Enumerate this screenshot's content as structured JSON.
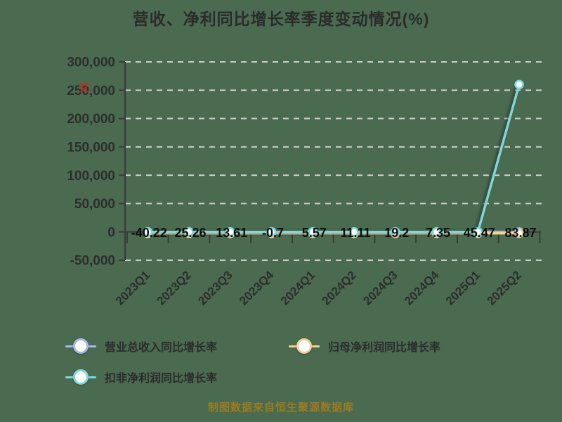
{
  "title": "营收、净利同比增长率季度变动情况(%)",
  "watermark_glyph": "爻",
  "footer": "制图数据来自恒生聚源数据库",
  "legend": [
    {
      "label": "营业总收入同比增长率",
      "color": "#a4bae7"
    },
    {
      "label": "归母净利润同比增长率",
      "color": "#f6cf94"
    },
    {
      "label": "扣非净利润同比增长率",
      "color": "#7ed7dc"
    }
  ],
  "colors": {
    "background": "#4b6b51",
    "gridline": "#cccccc",
    "axis": "#3a3a3a",
    "axis_text": "#2d2d2d",
    "point_label_text": "#0f0f0f",
    "footer_text": "#9c7c1d",
    "watermark_red": "#c42a1f"
  },
  "chart_data": {
    "type": "line",
    "title": "营收、净利同比增长率季度变动情况(%)",
    "xlabel": "",
    "ylabel": "",
    "categories": [
      "2023Q1",
      "2023Q2",
      "2023Q3",
      "2023Q4",
      "2024Q1",
      "2024Q2",
      "2024Q3",
      "2024Q4",
      "2025Q1",
      "2025Q2"
    ],
    "series": [
      {
        "name": "营业总收入同比增长率",
        "color": "#a4bae7",
        "labeled": false,
        "values_estimated_from_pixels": true,
        "values": [
          0,
          0,
          0,
          0,
          0,
          0,
          0,
          0,
          0,
          0
        ]
      },
      {
        "name": "归母净利润同比增长率",
        "color": "#f6cf94",
        "labeled": true,
        "values": [
          -40.22,
          25.26,
          13.61,
          -0.7,
          5.57,
          11.11,
          19.2,
          7.35,
          45.47,
          83.87
        ]
      },
      {
        "name": "扣非净利润同比增长率",
        "color": "#7ed7dc",
        "labeled": false,
        "values_estimated_from_pixels": true,
        "values": [
          0,
          0,
          0,
          0,
          0,
          0,
          0,
          0,
          0,
          260000
        ]
      }
    ],
    "ylim": [
      -50000,
      300000
    ],
    "ytick_interval": 50000,
    "ytick_labels": [
      "300,000",
      "250,000",
      "200,000",
      "150,000",
      "100,000",
      "50,000",
      "0",
      "-50,000"
    ],
    "grid": "horizontal dashed",
    "legend_position": "bottom-left",
    "x_axis_at_zero": true
  }
}
